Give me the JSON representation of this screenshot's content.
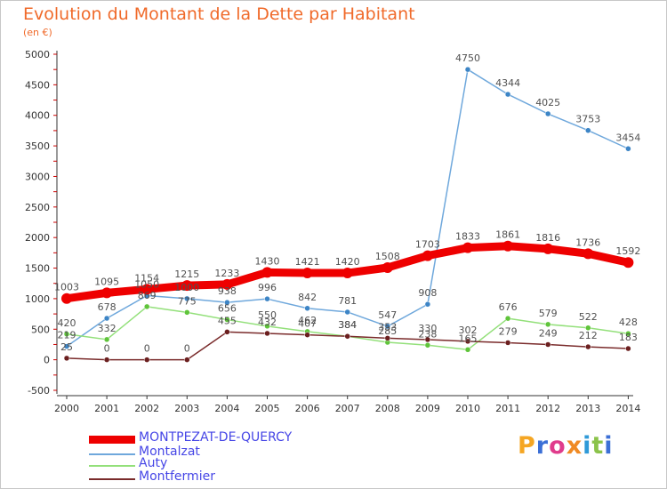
{
  "title": "Evolution du Montant de la Dette par Habitant",
  "subtitle": "(en €)",
  "logo": {
    "text": "Proxiti",
    "letter_colors": [
      "#f5a623",
      "#3b6fd6",
      "#e03c8c",
      "#f08a24",
      "#2f9ad8",
      "#8bc34a",
      "#3b6fd6"
    ]
  },
  "colors": {
    "axis": "#333333",
    "tick_mark": "#cc0000",
    "label_text": "#4646e6",
    "value_text": "#505050"
  },
  "chart_data": {
    "type": "line",
    "x": [
      "2000",
      "2001",
      "2002",
      "2003",
      "2004",
      "2005",
      "2006",
      "2007",
      "2008",
      "2009",
      "2010",
      "2011",
      "2012",
      "2013",
      "2014"
    ],
    "y_ticks": [
      "5000",
      "4500",
      "4000",
      "3500",
      "3000",
      "2500",
      "2000",
      "1500",
      "1000",
      "500",
      "0",
      "-500"
    ],
    "ylim": [
      -500,
      5000
    ],
    "legend_position": "bottom-left",
    "series": [
      {
        "name": "MONTPEZAT-DE-QUERCY",
        "color": "#ee0000",
        "point_color": "#ee0000",
        "emphasis": true,
        "values": [
          1003,
          1095,
          1154,
          1215,
          1233,
          1430,
          1421,
          1420,
          1508,
          1703,
          1833,
          1861,
          1816,
          1736,
          1592
        ],
        "labels": [
          "1003",
          "1095",
          "1154",
          "1215",
          "1233",
          "1430",
          "1421",
          "1420",
          "1508",
          "1703",
          "1833",
          "1861",
          "1816",
          "1736",
          "1592"
        ]
      },
      {
        "name": "Montalzat",
        "color": "#6fa8dc",
        "point_color": "#3d85c6",
        "values": [
          219,
          678,
          1050,
          1000,
          938,
          996,
          842,
          781,
          547,
          908,
          4750,
          4344,
          4025,
          3753,
          3454
        ],
        "labels": [
          "219",
          "678",
          "1050",
          "1000",
          "938",
          "996",
          "842",
          "781",
          "547",
          "908",
          "4750",
          "4344",
          "4025",
          "3753",
          "3454"
        ]
      },
      {
        "name": "Auty",
        "color": "#93e07a",
        "point_color": "#5fc43a",
        "values": [
          420,
          332,
          869,
          775,
          656,
          550,
          462,
          384,
          285,
          238,
          165,
          676,
          579,
          522,
          428
        ],
        "labels": [
          "420",
          "332",
          "869",
          "775",
          "656",
          "550",
          "462",
          "384",
          "285",
          "238",
          "165",
          "676",
          "579",
          "522",
          "428"
        ]
      },
      {
        "name": "Montfermier",
        "color": "#7a2b2b",
        "point_color": "#6b1f1f",
        "values": [
          25,
          0,
          0,
          0,
          455,
          432,
          407,
          384,
          353,
          330,
          302,
          279,
          249,
          212,
          183
        ],
        "labels": [
          "25",
          "0",
          "0",
          "0",
          "455",
          "432",
          "407",
          "384",
          "353",
          "330",
          "302",
          "279",
          "249",
          "212",
          "183"
        ]
      }
    ]
  }
}
